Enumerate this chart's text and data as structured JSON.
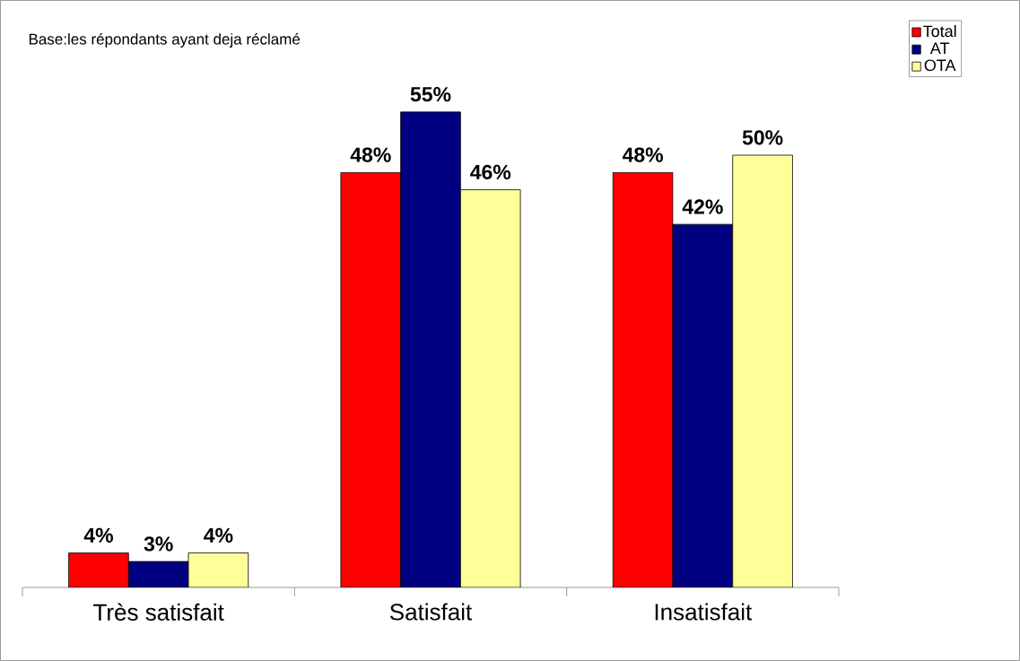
{
  "chart_data": {
    "type": "bar",
    "annotations": [
      "Base:les répondants ayant deja réclamé"
    ],
    "categories": [
      "Très satisfait",
      "Satisfait",
      "Insatisfait"
    ],
    "series": [
      {
        "name": "Total",
        "color": "#ff0000",
        "values": [
          4,
          48,
          48
        ],
        "value_labels": [
          "4%",
          "48%",
          "48%"
        ]
      },
      {
        "name": "AT",
        "color": "#000080",
        "values": [
          3,
          55,
          42
        ],
        "value_labels": [
          "3%",
          "55%",
          "42%"
        ]
      },
      {
        "name": "OTA",
        "color": "#ffff99",
        "values": [
          4,
          46,
          50
        ],
        "value_labels": [
          "4%",
          "46%",
          "50%"
        ]
      }
    ],
    "legend": "top right",
    "grid": false
  }
}
